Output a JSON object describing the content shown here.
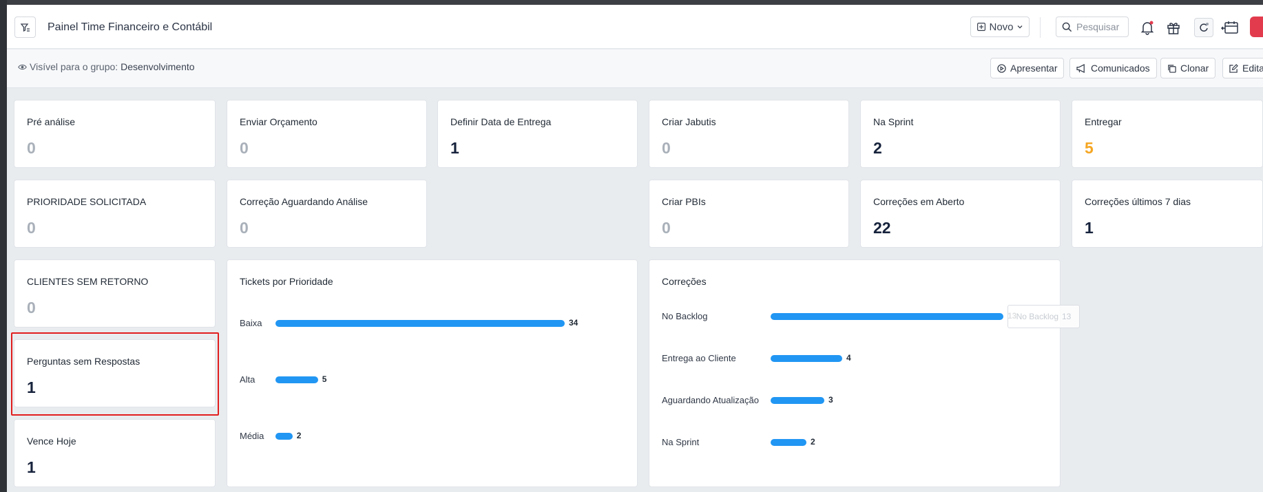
{
  "header": {
    "title": "Painel Time Financeiro e Contábil",
    "new_label": "Novo",
    "search_placeholder": "Pesquisar"
  },
  "subbar": {
    "visibility_prefix": "Visível para o grupo:",
    "visibility_group": "Desenvolvimento",
    "actions": [
      "Apresentar",
      "Comunicados",
      "Clonar",
      "Editar"
    ]
  },
  "cards": [
    {
      "label": "Pré análise",
      "value": "0"
    },
    {
      "label": "Enviar Orçamento",
      "value": "0"
    },
    {
      "label": "Definir Data de Entrega",
      "value": "1"
    },
    {
      "label": "Criar Jabutis",
      "value": "0"
    },
    {
      "label": "Na Sprint",
      "value": "2"
    },
    {
      "label": "Entregar",
      "value": "5"
    },
    {
      "label": "PRIORIDADE SOLICITADA",
      "value": "0"
    },
    {
      "label": "Correção Aguardando Análise",
      "value": "0"
    },
    {
      "label": "Criar PBIs",
      "value": "0"
    },
    {
      "label": "Correções em Aberto",
      "value": "22"
    },
    {
      "label": "Correções últimos 7 dias",
      "value": "1"
    },
    {
      "label": "CLIENTES SEM RETORNO",
      "value": "0"
    },
    {
      "label": "Perguntas sem Respostas",
      "value": "1"
    },
    {
      "label": "Vence Hoje",
      "value": "1"
    }
  ],
  "colors": {
    "accent_bar": "#2196f3",
    "highlight": "#e11d1d",
    "orange_value": "#f5a623",
    "zero_value": "#a9b0b9"
  },
  "chart_data": [
    {
      "type": "bar",
      "orientation": "horizontal",
      "title": "Tickets por Prioridade",
      "categories": [
        "Baixa",
        "Alta",
        "Média"
      ],
      "values": [
        34,
        5,
        2
      ],
      "xlim": [
        0,
        34
      ]
    },
    {
      "type": "bar",
      "orientation": "horizontal",
      "title": "Correções",
      "categories": [
        "No Backlog",
        "Entrega ao Cliente",
        "Aguardando Atualização",
        "Na Sprint"
      ],
      "values": [
        13,
        4,
        3,
        2
      ],
      "xlim": [
        0,
        13
      ],
      "tooltip": {
        "category": "No Backlog",
        "value": "13"
      }
    }
  ]
}
